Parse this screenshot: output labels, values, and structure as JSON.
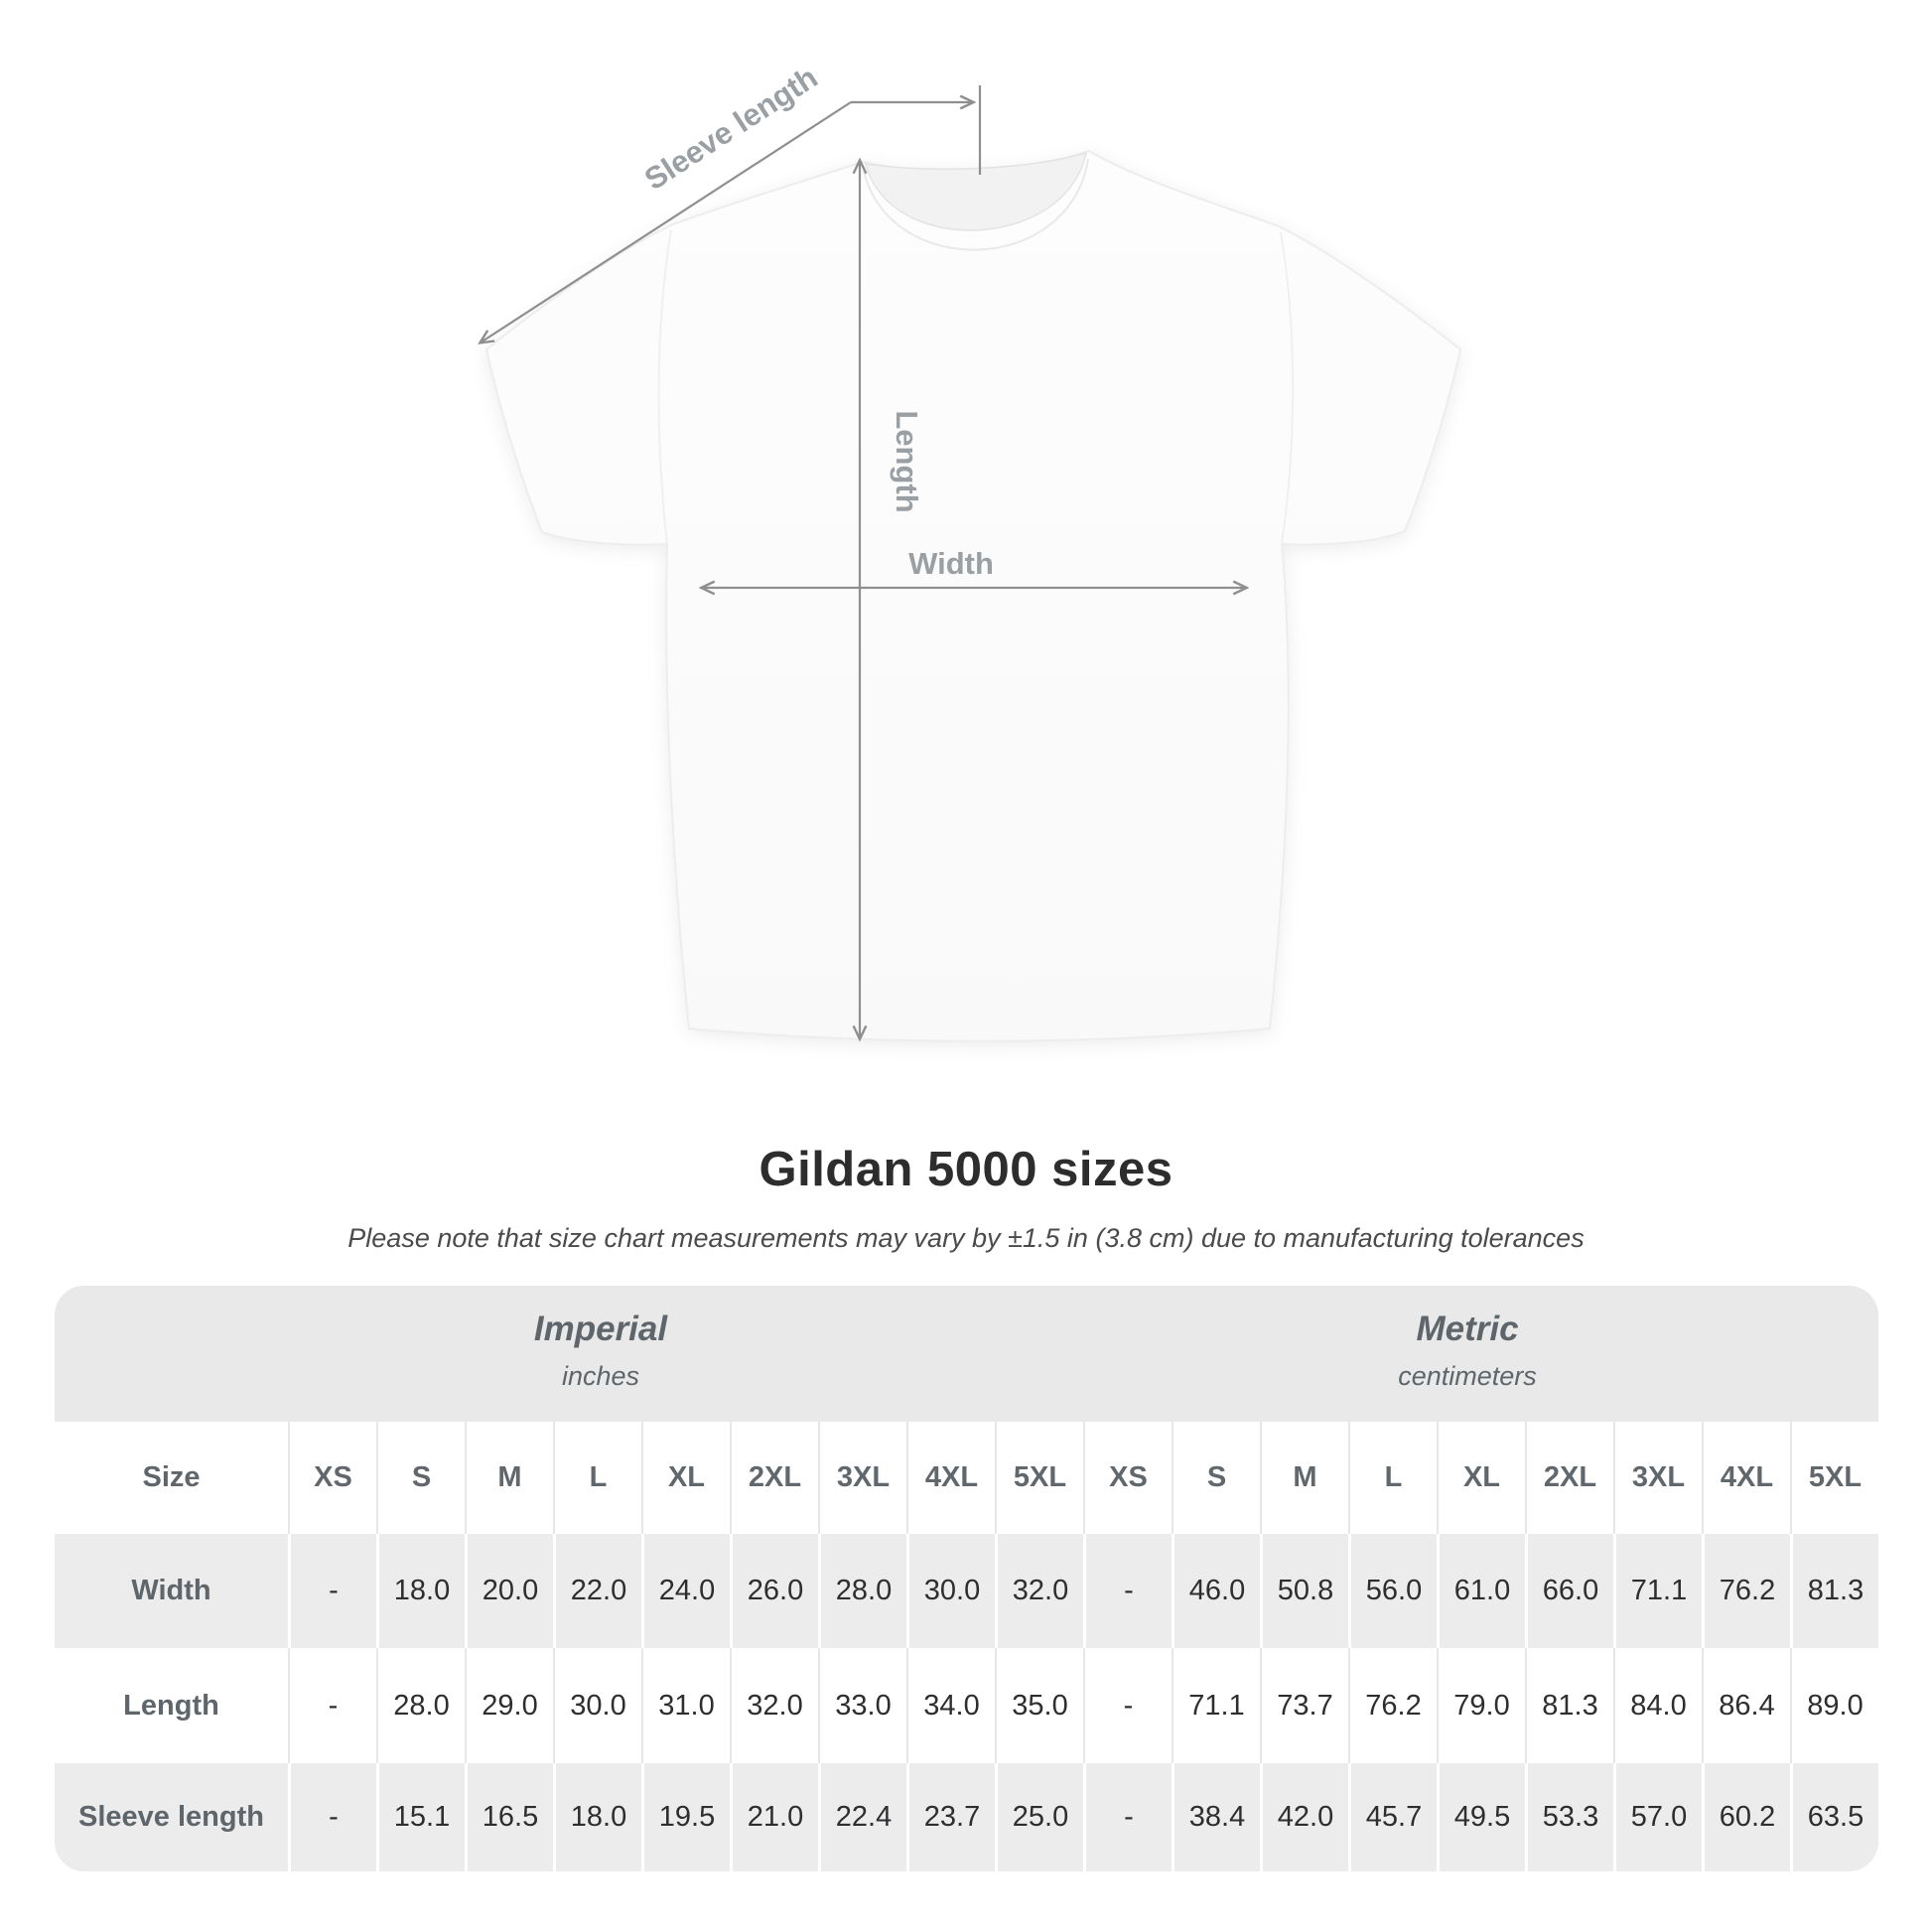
{
  "title": "Gildan 5000 sizes",
  "subtitle": "Please note that size chart measurements may vary by ±1.5 in (3.8 cm) due to manufacturing tolerances",
  "diagram": {
    "sleeve_label": "Sleeve length",
    "length_label": "Length",
    "width_label": "Width"
  },
  "colors": {
    "annotation_line": "#8f8f8f",
    "annotation_text": "#9a9fa3",
    "band_bg": "#e9e9e9",
    "row_alt_bg": "#ececec",
    "header_text": "#5f666b",
    "value_text": "#2d2e30",
    "title_text": "#2d2d2d",
    "subtitle_text": "#4b4b4b"
  },
  "table": {
    "sections": [
      {
        "name": "Imperial",
        "unit": "inches"
      },
      {
        "name": "Metric",
        "unit": "centimeters"
      }
    ],
    "size_header": "Size",
    "sizes": [
      "XS",
      "S",
      "M",
      "L",
      "XL",
      "2XL",
      "3XL",
      "4XL",
      "5XL"
    ],
    "rows": [
      {
        "label": "Width",
        "imperial": [
          "-",
          "18.0",
          "20.0",
          "22.0",
          "24.0",
          "26.0",
          "28.0",
          "30.0",
          "32.0"
        ],
        "metric": [
          "-",
          "46.0",
          "50.8",
          "56.0",
          "61.0",
          "66.0",
          "71.1",
          "76.2",
          "81.3"
        ]
      },
      {
        "label": "Length",
        "imperial": [
          "-",
          "28.0",
          "29.0",
          "30.0",
          "31.0",
          "32.0",
          "33.0",
          "34.0",
          "35.0"
        ],
        "metric": [
          "-",
          "71.1",
          "73.7",
          "76.2",
          "79.0",
          "81.3",
          "84.0",
          "86.4",
          "89.0"
        ]
      },
      {
        "label": "Sleeve length",
        "imperial": [
          "-",
          "15.1",
          "16.5",
          "18.0",
          "19.5",
          "21.0",
          "22.4",
          "23.7",
          "25.0"
        ],
        "metric": [
          "-",
          "38.4",
          "42.0",
          "45.7",
          "49.5",
          "53.3",
          "57.0",
          "60.2",
          "63.5"
        ]
      }
    ]
  },
  "chart_data": {
    "type": "table",
    "title": "Gildan 5000 sizes",
    "note": "Measurements may vary by ±1.5 in (3.8 cm) due to manufacturing tolerances",
    "sections": [
      {
        "name": "Imperial",
        "unit": "inches",
        "columns": [
          "XS",
          "S",
          "M",
          "L",
          "XL",
          "2XL",
          "3XL",
          "4XL",
          "5XL"
        ],
        "rows": [
          {
            "label": "Width",
            "values": [
              null,
              18.0,
              20.0,
              22.0,
              24.0,
              26.0,
              28.0,
              30.0,
              32.0
            ]
          },
          {
            "label": "Length",
            "values": [
              null,
              28.0,
              29.0,
              30.0,
              31.0,
              32.0,
              33.0,
              34.0,
              35.0
            ]
          },
          {
            "label": "Sleeve length",
            "values": [
              null,
              15.1,
              16.5,
              18.0,
              19.5,
              21.0,
              22.4,
              23.7,
              25.0
            ]
          }
        ]
      },
      {
        "name": "Metric",
        "unit": "centimeters",
        "columns": [
          "XS",
          "S",
          "M",
          "L",
          "XL",
          "2XL",
          "3XL",
          "4XL",
          "5XL"
        ],
        "rows": [
          {
            "label": "Width",
            "values": [
              null,
              46.0,
              50.8,
              56.0,
              61.0,
              66.0,
              71.1,
              76.2,
              81.3
            ]
          },
          {
            "label": "Length",
            "values": [
              null,
              71.1,
              73.7,
              76.2,
              79.0,
              81.3,
              84.0,
              86.4,
              89.0
            ]
          },
          {
            "label": "Sleeve length",
            "values": [
              null,
              38.4,
              42.0,
              45.7,
              49.5,
              53.3,
              57.0,
              60.2,
              63.5
            ]
          }
        ]
      }
    ]
  }
}
